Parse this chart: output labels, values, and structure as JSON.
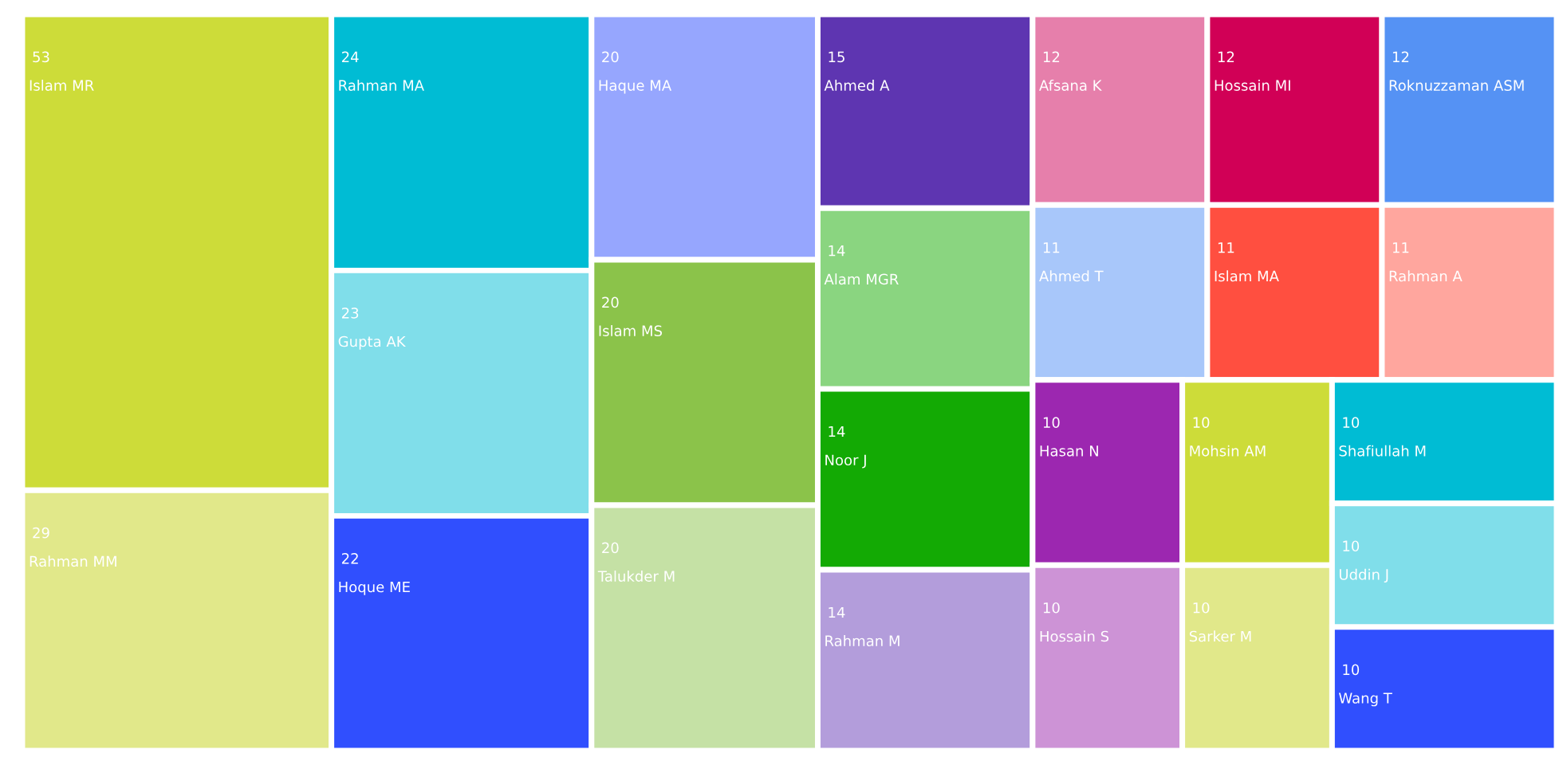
{
  "chart_data": {
    "type": "other",
    "data_labels": true,
    "categories": [
      "Islam MR",
      "Rahman MM",
      "Rahman MA",
      "Gupta AK",
      "Hoque ME",
      "Haque MA",
      "Islam MS",
      "Talukder M",
      "Ahmed A",
      "Alam MGR",
      "Noor J",
      "Rahman M",
      "Afsana K",
      "Hossain MI",
      "Roknuzzaman ASM",
      "Ahmed T",
      "Islam MA",
      "Rahman A",
      "Hasan N",
      "Hossain S",
      "Mohsin AM",
      "Sarker M",
      "Shafiullah M",
      "Uddin J",
      "Wang T"
    ],
    "values": [
      53,
      29,
      24,
      23,
      22,
      20,
      20,
      20,
      15,
      14,
      14,
      14,
      12,
      12,
      12,
      11,
      11,
      11,
      10,
      10,
      10,
      10,
      10,
      10,
      10
    ],
    "colors": [
      "#cddc39",
      "#e1e88a",
      "#00bcd4",
      "#80deea",
      "#304ffe",
      "#96a6fe",
      "#8bc34a",
      "#c5e1a5",
      "#5e35b1",
      "#8ad580",
      "#13aa04",
      "#b39ddb",
      "#e67fab",
      "#d10056",
      "#5592f4",
      "#a8c7fa",
      "#ff4f40",
      "#ffa69e",
      "#9c27b0",
      "#cd93d6",
      "#cddc39",
      "#e1e88a",
      "#00bcd4",
      "#80deea",
      "#304ffe"
    ]
  }
}
